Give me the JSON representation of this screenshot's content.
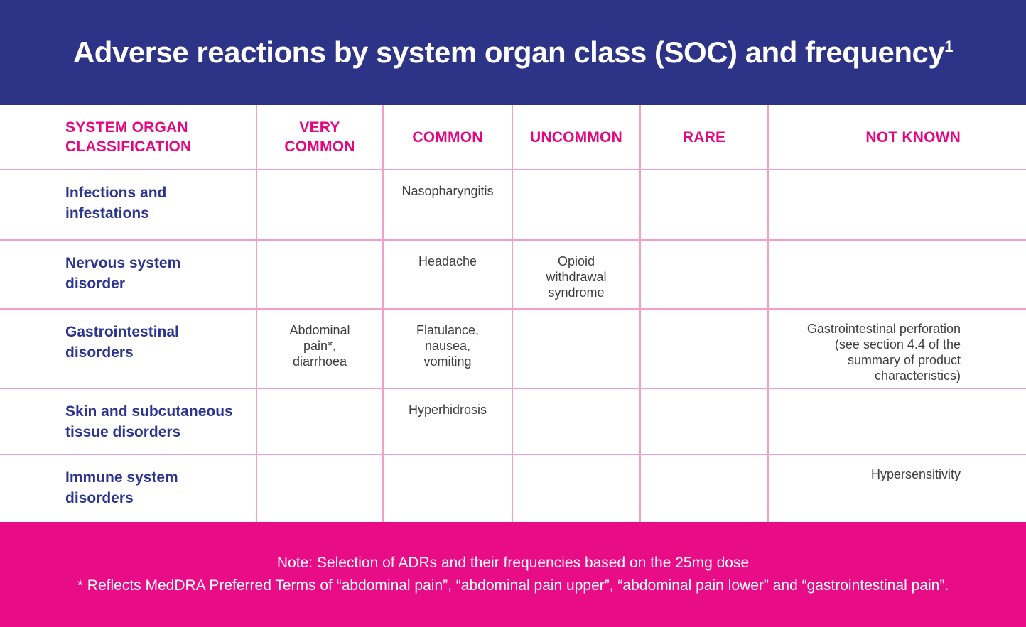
{
  "colors": {
    "banner_background": "#2D3487",
    "footer_background": "#E90C87",
    "column_header_text": "#E5077F",
    "row_label_text": "#2B3590",
    "cell_text": "#3E3E3E",
    "grid_line": "#F49FC9",
    "title_text": "#FFFFFF"
  },
  "banner": {
    "title": "Adverse reactions by system organ class (SOC) and frequency",
    "superscript": "1"
  },
  "table": {
    "columns": [
      {
        "key": "soc",
        "label": "SYSTEM ORGAN\nCLASSIFICATION"
      },
      {
        "key": "very_common",
        "label": "VERY\nCOMMON"
      },
      {
        "key": "common",
        "label": "COMMON"
      },
      {
        "key": "uncommon",
        "label": "UNCOMMON"
      },
      {
        "key": "rare",
        "label": "RARE"
      },
      {
        "key": "not_known",
        "label": "NOT KNOWN"
      }
    ],
    "rows": [
      {
        "soc": "Infections and\ninfestations",
        "very_common": "",
        "common": "Nasopharyngitis",
        "uncommon": "",
        "rare": "",
        "not_known": ""
      },
      {
        "soc": "Nervous system\ndisorder",
        "very_common": "",
        "common": "Headache",
        "uncommon": "Opioid\nwithdrawal\nsyndrome",
        "rare": "",
        "not_known": ""
      },
      {
        "soc": "Gastrointestinal\ndisorders",
        "very_common": "Abdominal\npain*,\ndiarrhoea",
        "common": "Flatulance,\nnausea,\nvomiting",
        "uncommon": "",
        "rare": "",
        "not_known": "Gastrointestinal perforation\n(see section 4.4 of the\nsummary of product\ncharacteristics)"
      },
      {
        "soc": "Skin and subcutaneous\ntissue disorders",
        "very_common": "",
        "common": "Hyperhidrosis",
        "uncommon": "",
        "rare": "",
        "not_known": ""
      },
      {
        "soc": "Immune system\ndisorders",
        "very_common": "",
        "common": "",
        "uncommon": "",
        "rare": "",
        "not_known": "Hypersensitivity"
      }
    ]
  },
  "footer": {
    "note": "Note: Selection of ADRs and their frequencies based on the 25mg dose",
    "asterisk_note": "* Reflects MedDRA Preferred Terms of “abdominal pain”, “abdominal pain upper”, “abdominal pain lower” and “gastrointestinal pain”."
  }
}
